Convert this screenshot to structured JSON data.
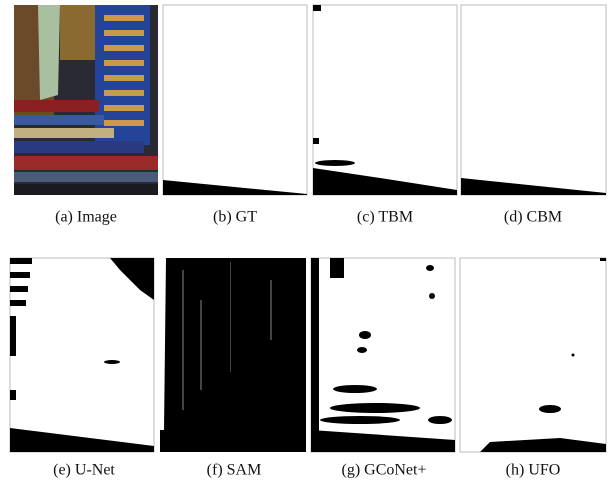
{
  "figure": {
    "panels": [
      {
        "caption": "(a) Image"
      },
      {
        "caption": "(b) GT"
      },
      {
        "caption": "(c) TBM"
      },
      {
        "caption": "(d) CBM"
      },
      {
        "caption": "(e) U-Net"
      },
      {
        "caption": "(f) SAM"
      },
      {
        "caption": "(g) GCoNet+"
      },
      {
        "caption": "(h) UFO"
      }
    ]
  }
}
